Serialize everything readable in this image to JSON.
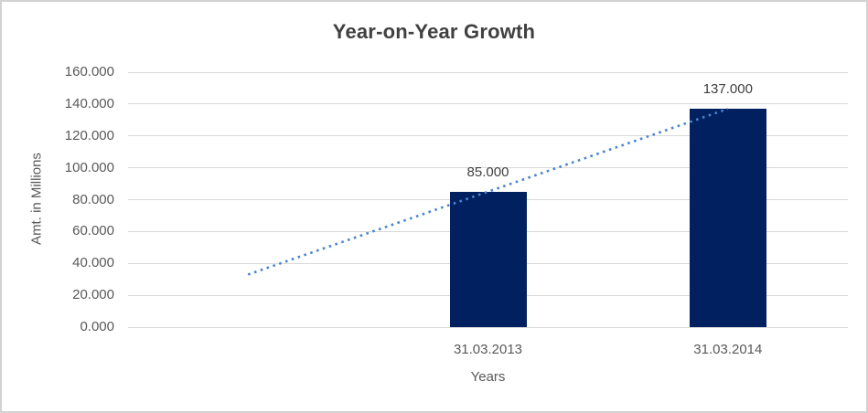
{
  "chart_data": {
    "type": "bar",
    "title": "Year-on-Year Growth",
    "xlabel": "Years",
    "ylabel": "Amt. in Millions",
    "categories": [
      "31.03.2013",
      "31.03.2014"
    ],
    "values": [
      85,
      137
    ],
    "data_labels": [
      "85.000",
      "137.000"
    ],
    "ylim": [
      0,
      160
    ],
    "ytick_step": 20,
    "ytick_labels": [
      "0.000",
      "20.000",
      "40.000",
      "60.000",
      "80.000",
      "100.000",
      "120.000",
      "140.000",
      "160.000"
    ],
    "grid": true,
    "legend": "none",
    "bar_color": "#002060",
    "axis_text_color": "#595959",
    "title_color": "#404040",
    "gridline_color": "#d9d9d9",
    "x_slots": 3,
    "bar_slots": [
      1,
      2
    ],
    "trendline": {
      "style": "dotted",
      "color": "#4A85C8",
      "points": [
        {
          "slot": 0,
          "value": 33
        },
        {
          "slot": 2,
          "value": 137
        }
      ]
    }
  }
}
